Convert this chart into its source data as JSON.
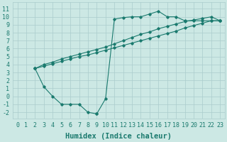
{
  "bg_color": "#cce8e4",
  "grid_color": "#aacccc",
  "line_color": "#1a7a6e",
  "xlabel": "Humidex (Indice chaleur)",
  "xlabel_fontsize": 7.5,
  "tick_fontsize": 6,
  "xlim": [
    -0.5,
    23.5
  ],
  "ylim": [
    -2.8,
    11.8
  ],
  "xticks": [
    0,
    1,
    2,
    3,
    4,
    5,
    6,
    7,
    8,
    9,
    10,
    11,
    12,
    13,
    14,
    15,
    16,
    17,
    18,
    19,
    20,
    21,
    22,
    23
  ],
  "yticks": [
    -2,
    -1,
    0,
    1,
    2,
    3,
    4,
    5,
    6,
    7,
    8,
    9,
    10,
    11
  ],
  "line1_x": [
    2,
    3,
    4,
    5,
    6,
    7,
    8,
    9,
    10,
    11,
    12,
    13,
    14,
    15,
    16,
    17,
    18,
    19,
    20,
    21,
    22,
    23
  ],
  "line1_y": [
    3.5,
    4.0,
    4.3,
    4.7,
    5.0,
    5.3,
    5.6,
    5.9,
    6.2,
    6.6,
    7.0,
    7.4,
    7.8,
    8.1,
    8.5,
    8.8,
    9.1,
    9.4,
    9.6,
    9.8,
    10.0,
    9.5
  ],
  "line2_x": [
    2,
    3,
    4,
    5,
    6,
    7,
    8,
    9,
    10,
    11,
    12,
    13,
    14,
    15,
    16,
    17,
    18,
    19,
    20,
    21,
    22,
    23
  ],
  "line2_y": [
    3.5,
    3.8,
    4.1,
    4.4,
    4.7,
    5.0,
    5.2,
    5.5,
    5.8,
    6.1,
    6.4,
    6.7,
    7.0,
    7.3,
    7.6,
    7.9,
    8.2,
    8.6,
    8.9,
    9.2,
    9.5,
    9.5
  ],
  "line3_x": [
    2,
    3,
    4,
    5,
    6,
    7,
    8,
    9,
    10,
    11,
    12,
    13,
    14,
    15,
    16,
    17,
    18,
    19,
    20,
    21,
    22,
    23
  ],
  "line3_y": [
    3.5,
    1.2,
    0.0,
    -1.0,
    -1.0,
    -1.0,
    -2.0,
    -2.2,
    -0.3,
    9.7,
    9.9,
    10.0,
    10.0,
    10.35,
    10.7,
    10.0,
    10.0,
    9.5,
    9.5,
    9.5,
    9.5,
    9.5
  ]
}
